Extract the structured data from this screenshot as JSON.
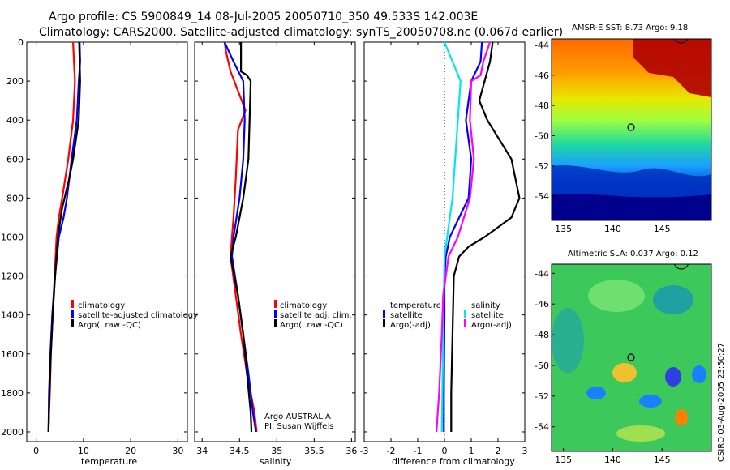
{
  "header": {
    "line1": "Argo profile: CS 5900849_14 08-Jul-2005 20050710_350 49.533S 142.003E",
    "line2": "Climatology: CARS2000. Satellite-adjusted climatology: synTS_20050708.nc (0.067d earlier)"
  },
  "colors": {
    "clim": "#ff0000",
    "sat": "#0000ff",
    "argo": "#000000",
    "clim_alt": "#00e5ee",
    "sat_alt": "#ff00ff"
  },
  "chart_data": [
    {
      "type": "line",
      "name": "temperature",
      "xlabel": "temperature",
      "xlim": [
        -2,
        32
      ],
      "xticks": [
        0,
        10,
        20,
        30
      ],
      "ylim": [
        2050,
        0
      ],
      "yticks": [
        0,
        200,
        400,
        600,
        800,
        1000,
        1200,
        1400,
        1600,
        1800,
        2000
      ],
      "legend": [
        "climatology",
        "satellite-adjusted climatology",
        "Argo(..raw -QC)"
      ],
      "series": [
        {
          "name": "climatology",
          "color": "clim",
          "x": [
            7.8,
            8.0,
            8.2,
            7.8,
            6.8,
            5.5,
            4.8,
            4.3,
            3.9,
            3.5,
            3.1,
            2.9,
            2.7,
            2.6
          ],
          "y": [
            0,
            100,
            200,
            400,
            600,
            800,
            900,
            1000,
            1200,
            1400,
            1600,
            1800,
            1900,
            2000
          ]
        },
        {
          "name": "satellite-adjusted climatology",
          "color": "sat",
          "x": [
            9.2,
            9.3,
            9.0,
            8.6,
            7.5,
            6.5,
            5.8,
            4.8,
            4.0,
            3.4,
            3.0,
            2.7,
            2.6
          ],
          "y": [
            0,
            100,
            200,
            400,
            600,
            800,
            900,
            1000,
            1200,
            1400,
            1600,
            1800,
            2000
          ]
        },
        {
          "name": "Argo(..raw -QC)",
          "color": "argo",
          "x": [
            9.1,
            9.2,
            9.3,
            9.0,
            8.4,
            7.8,
            7.0,
            5.5,
            4.6,
            4.0,
            3.5,
            3.1,
            2.8,
            2.6
          ],
          "y": [
            0,
            100,
            200,
            400,
            500,
            600,
            700,
            850,
            1000,
            1200,
            1400,
            1600,
            1800,
            2000
          ]
        }
      ]
    },
    {
      "type": "line",
      "name": "salinity",
      "xlabel": "salinity",
      "xlim": [
        33.9,
        36.05
      ],
      "xticks": [
        34,
        34.5,
        35,
        35.5,
        36
      ],
      "ylim": [
        2050,
        0
      ],
      "legend": [
        "climatology",
        "satellite adj. clim.",
        "Argo(..raw -QC)"
      ],
      "annotation": [
        "Argo AUSTRALIA",
        "PI: Susan Wijffels"
      ],
      "series": [
        {
          "name": "climatology",
          "color": "clim",
          "x": [
            34.3,
            34.32,
            34.38,
            34.58,
            34.48,
            34.45,
            34.42,
            34.4,
            34.38,
            34.45,
            34.52,
            34.6,
            34.7,
            34.73
          ],
          "y": [
            0,
            50,
            150,
            350,
            450,
            700,
            900,
            1000,
            1100,
            1300,
            1500,
            1700,
            1900,
            2000
          ]
        },
        {
          "name": "satellite adj. clim.",
          "color": "sat",
          "x": [
            34.3,
            34.42,
            34.55,
            34.57,
            34.55,
            34.5,
            34.42,
            34.4,
            34.48,
            34.55,
            34.62,
            34.68,
            34.72
          ],
          "y": [
            0,
            100,
            200,
            400,
            600,
            800,
            1000,
            1100,
            1300,
            1500,
            1700,
            1900,
            2000
          ]
        },
        {
          "name": "Argo(..raw -QC)",
          "color": "argo",
          "x": [
            34.52,
            34.52,
            34.6,
            34.65,
            34.62,
            34.55,
            34.45,
            34.38,
            34.48,
            34.55,
            34.6,
            34.65,
            34.66
          ],
          "y": [
            0,
            150,
            170,
            200,
            600,
            800,
            1000,
            1100,
            1300,
            1500,
            1700,
            1900,
            2000
          ]
        }
      ]
    },
    {
      "type": "line",
      "name": "difference from climatology",
      "xlabel": "difference from climatology",
      "xlim": [
        -3,
        3
      ],
      "xticks": [
        -3,
        -2,
        -1,
        0,
        1,
        2,
        3
      ],
      "ylim": [
        2050,
        0
      ],
      "legend": [
        "temperature",
        "satellite",
        "Argo(-adj)",
        "salinity",
        "satellite",
        "Argo(-adj)"
      ],
      "series": [
        {
          "name": "temperature satellite",
          "color": "sat",
          "x": [
            1.4,
            1.35,
            1.0,
            0.8,
            1.0,
            0.9,
            0.55,
            0.2,
            0.05,
            0.0,
            0.0,
            -0.02,
            -0.02
          ],
          "y": [
            0,
            100,
            200,
            400,
            600,
            800,
            900,
            1000,
            1100,
            1200,
            1400,
            1800,
            2000
          ]
        },
        {
          "name": "temperature Argo(-adj)",
          "color": "argo",
          "x": [
            1.8,
            1.7,
            1.5,
            1.3,
            1.6,
            2.5,
            2.8,
            2.5,
            1.5,
            0.9,
            0.55,
            0.35,
            0.3,
            0.25,
            0.25
          ],
          "y": [
            0,
            100,
            200,
            300,
            400,
            600,
            800,
            900,
            1000,
            1050,
            1100,
            1200,
            1500,
            1800,
            2000
          ]
        },
        {
          "name": "salinity satellite",
          "color": "clim_alt",
          "x": [
            0.0,
            0.3,
            0.6,
            0.5,
            0.4,
            0.3,
            0.2,
            0.1,
            0.0,
            -0.05,
            -0.1
          ],
          "y": [
            0,
            100,
            200,
            400,
            600,
            800,
            900,
            1000,
            1100,
            1500,
            2000
          ]
        },
        {
          "name": "salinity Argo(-adj)",
          "color": "sat_alt",
          "x": [
            1.7,
            1.45,
            1.35,
            1.0,
            0.95,
            1.1,
            0.95,
            0.5,
            0.15,
            -0.05,
            -0.1,
            -0.2,
            -0.3
          ],
          "y": [
            0,
            100,
            170,
            200,
            400,
            600,
            800,
            1000,
            1100,
            1300,
            1500,
            1800,
            2000
          ]
        }
      ]
    },
    {
      "type": "heatmap",
      "name": "AMSR-E SST map",
      "title": "AMSR-E SST: 8.73 Argo: 9.18",
      "xticks": [
        135,
        140,
        145
      ],
      "yticks": [
        -44,
        -46,
        -48,
        -50,
        -52,
        -54
      ]
    },
    {
      "type": "heatmap",
      "name": "Altimetric SLA map",
      "title": "Altimetric SLA: 0.037 Argo: 0.12",
      "xticks": [
        135,
        140,
        145
      ],
      "yticks": [
        -44,
        -46,
        -48,
        -50,
        -52,
        -54
      ]
    }
  ],
  "footer": {
    "credit": "CSIRO 03-Aug-2005 23:50:27"
  }
}
